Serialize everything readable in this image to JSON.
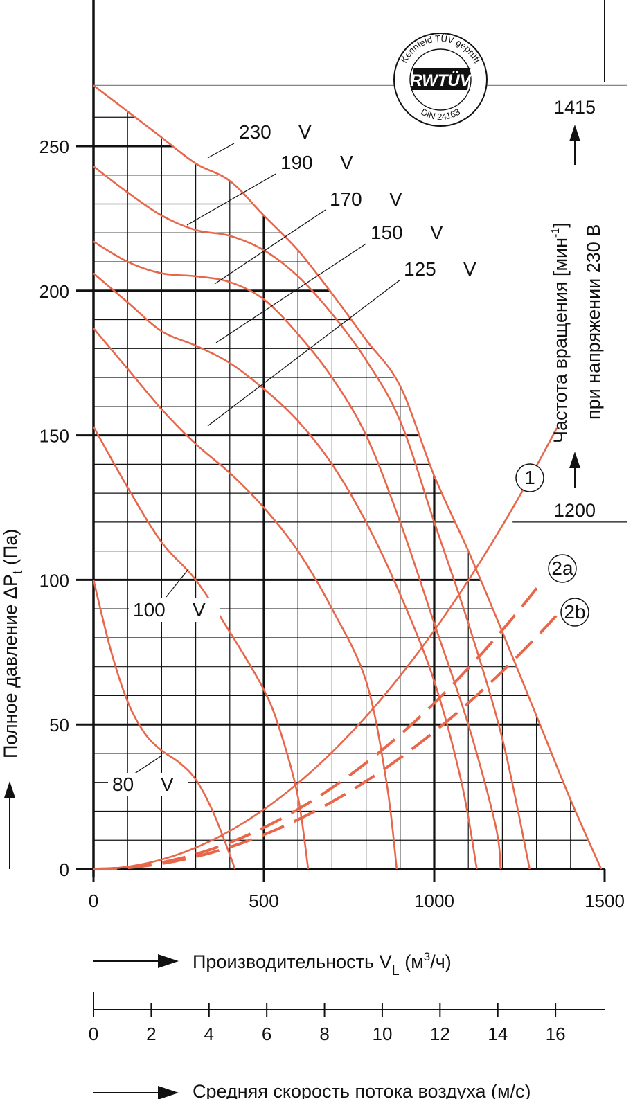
{
  "chart_data": {
    "type": "line",
    "x": {
      "label": "Производительность V",
      "label_sub": "L",
      "label_unit_pre": " (м",
      "label_unit_sup": "3",
      "label_unit_post": "/ч)",
      "ticks": [
        0,
        500,
        1000,
        1500
      ],
      "range": [
        0,
        1500
      ]
    },
    "y": {
      "label_main": "Полное давление ΔP",
      "label_sub": "t",
      "label_unit": " (Па)",
      "ticks": [
        0,
        50,
        100,
        150,
        200,
        250
      ],
      "range": [
        0,
        270
      ]
    },
    "velocity_axis": {
      "label": "Средняя скорость потока воздуха (м/с)",
      "ticks": [
        0,
        2,
        4,
        6,
        8,
        10,
        12,
        14,
        16
      ],
      "max_velocity_at_1500": 17.7
    },
    "speed_axis": {
      "title_line1_pre": "Частота вращения [мин",
      "title_line1_sup": "-1",
      "title_line1_post": "]",
      "title_line2": "при напряжении 230 В",
      "top_value": "1415",
      "bottom_value": "1200"
    },
    "fan_curves": [
      {
        "name": "230 V",
        "label": "230",
        "unit": "V",
        "points": [
          [
            0,
            271
          ],
          [
            100,
            262
          ],
          [
            200,
            253
          ],
          [
            300,
            244
          ],
          [
            400,
            238
          ],
          [
            500,
            226
          ],
          [
            600,
            214
          ],
          [
            700,
            199
          ],
          [
            800,
            183
          ],
          [
            900,
            167
          ],
          [
            1000,
            136
          ],
          [
            1100,
            110
          ],
          [
            1200,
            82
          ],
          [
            1300,
            53
          ],
          [
            1400,
            24
          ],
          [
            1490,
            0
          ]
        ]
      },
      {
        "name": "190 V",
        "label": "190",
        "unit": "V",
        "points": [
          [
            0,
            243
          ],
          [
            100,
            234
          ],
          [
            200,
            226
          ],
          [
            300,
            221
          ],
          [
            400,
            219
          ],
          [
            500,
            214
          ],
          [
            600,
            205
          ],
          [
            700,
            192
          ],
          [
            800,
            176
          ],
          [
            900,
            155
          ],
          [
            1000,
            120
          ],
          [
            1100,
            85
          ],
          [
            1200,
            45
          ],
          [
            1280,
            0
          ]
        ]
      },
      {
        "name": "170 V",
        "label": "170",
        "unit": "V",
        "points": [
          [
            0,
            217
          ],
          [
            100,
            210
          ],
          [
            200,
            206
          ],
          [
            300,
            205
          ],
          [
            400,
            203
          ],
          [
            500,
            197
          ],
          [
            600,
            185
          ],
          [
            700,
            170
          ],
          [
            800,
            150
          ],
          [
            900,
            120
          ],
          [
            1000,
            85
          ],
          [
            1100,
            50
          ],
          [
            1180,
            15
          ],
          [
            1195,
            0
          ]
        ]
      },
      {
        "name": "150 V",
        "label": "150",
        "unit": "V",
        "points": [
          [
            0,
            206
          ],
          [
            100,
            196
          ],
          [
            200,
            186
          ],
          [
            300,
            181
          ],
          [
            400,
            175
          ],
          [
            500,
            166
          ],
          [
            600,
            155
          ],
          [
            700,
            140
          ],
          [
            800,
            120
          ],
          [
            900,
            95
          ],
          [
            1000,
            65
          ],
          [
            1080,
            30
          ],
          [
            1125,
            0
          ]
        ]
      },
      {
        "name": "125 V",
        "label": "125",
        "unit": "V",
        "points": [
          [
            0,
            187
          ],
          [
            100,
            173
          ],
          [
            200,
            159
          ],
          [
            300,
            147
          ],
          [
            400,
            137
          ],
          [
            500,
            125
          ],
          [
            600,
            110
          ],
          [
            700,
            90
          ],
          [
            800,
            65
          ],
          [
            860,
            30
          ],
          [
            890,
            0
          ]
        ]
      },
      {
        "name": "100 V",
        "label": "100",
        "unit": "V",
        "points": [
          [
            0,
            153
          ],
          [
            100,
            132
          ],
          [
            200,
            113
          ],
          [
            300,
            100
          ],
          [
            400,
            82
          ],
          [
            500,
            62
          ],
          [
            550,
            47
          ],
          [
            600,
            25
          ],
          [
            630,
            0
          ]
        ]
      },
      {
        "name": "80 V",
        "label": "80",
        "unit": "V",
        "points": [
          [
            0,
            100
          ],
          [
            50,
            76
          ],
          [
            100,
            58
          ],
          [
            150,
            47
          ],
          [
            200,
            41
          ],
          [
            250,
            37
          ],
          [
            300,
            31
          ],
          [
            350,
            20
          ],
          [
            400,
            5
          ],
          [
            415,
            0
          ]
        ]
      }
    ],
    "system_curves": [
      {
        "name": "1",
        "dashed": false,
        "k": 8.25e-05
      },
      {
        "name": "2a",
        "dashed": true,
        "k": 5.74e-05
      },
      {
        "name": "2b",
        "dashed": true,
        "k": 4.75e-05
      }
    ]
  },
  "logo": {
    "ring_top": "Kennfeld TÜV geprüft",
    "brand": "RWTÜV",
    "ring_bottom": "DIN 24163"
  },
  "colors": {
    "curve": "#e8664a",
    "grid": "#111111"
  }
}
